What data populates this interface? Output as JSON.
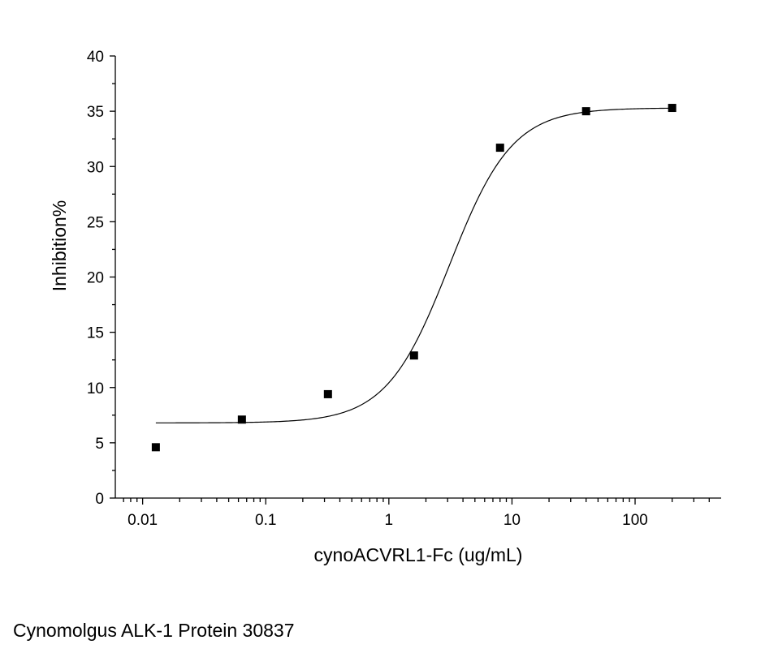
{
  "caption": "Cynomolgus ALK-1 Protein 30837",
  "chart_data": {
    "type": "scatter",
    "title": "",
    "xlabel": "cynoACVRL1-Fc (ug/mL)",
    "ylabel": "Inhibition%",
    "xscale": "log",
    "xlim": [
      0.006,
      500
    ],
    "ylim": [
      0,
      40
    ],
    "xticks": [
      0.01,
      0.1,
      1,
      10,
      100
    ],
    "xtick_labels": [
      "0.01",
      "0.1",
      "1",
      "10",
      "100"
    ],
    "yticks": [
      0,
      5,
      10,
      15,
      20,
      25,
      30,
      35,
      40
    ],
    "ytick_labels": [
      "0",
      "5",
      "10",
      "15",
      "20",
      "25",
      "30",
      "35",
      "40"
    ],
    "grid": false,
    "legend": "none",
    "series": [
      {
        "marker": "square",
        "color": "#000000",
        "x": [
          0.0128,
          0.064,
          0.32,
          1.6,
          8,
          40,
          200
        ],
        "y": [
          4.6,
          7.1,
          9.4,
          12.9,
          31.7,
          35.0,
          35.3
        ]
      }
    ],
    "fit": {
      "type": "four-parameter logistic",
      "color": "#000000",
      "bottom": 6.8,
      "top": 35.3,
      "ec50": 3.1,
      "hill": 1.7,
      "x_range": [
        0.0128,
        200
      ]
    }
  }
}
